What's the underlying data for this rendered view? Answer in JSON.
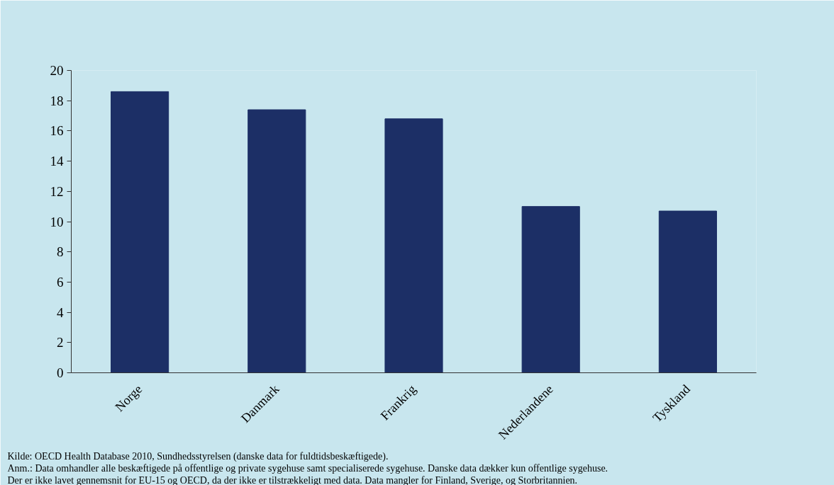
{
  "chart_data": {
    "type": "bar",
    "categories": [
      "Norge",
      "Danmark",
      "Frankrig",
      "Nederlandene",
      "Tyskland"
    ],
    "values": [
      18.6,
      17.4,
      16.8,
      11.0,
      10.7
    ],
    "color": "#1c2f66",
    "ylim": [
      0,
      20
    ],
    "yticks": [
      0,
      2,
      4,
      6,
      8,
      10,
      12,
      14,
      16,
      18,
      20
    ],
    "grid": false,
    "annotations": [
      "Kilde: OECD Health Database 2010, Sundhedsstyrelsen (danske data for fuldtidsbeskæftigede).",
      "Anm.: Data omhandler alle beskæftigede på offentlige og private sygehuse samt specialiserede sygehuse. Danske data dækker kun offentlige sygehuse.",
      "Der er ikke lavet gennemsnit for EU-15 og OECD, da der ikke er tilstrækkeligt med data. Data mangler for Finland, Sverige, og Storbritannien."
    ]
  }
}
